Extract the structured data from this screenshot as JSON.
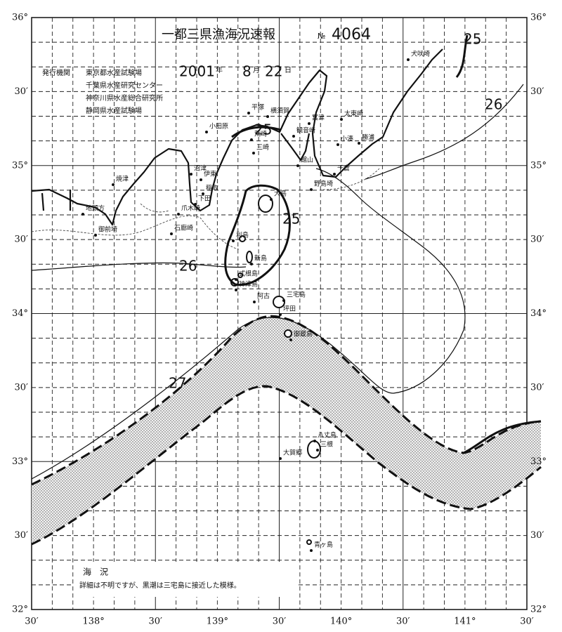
{
  "header": {
    "title": "一都三県漁海況速報",
    "number_label": "№",
    "number": "4064",
    "year": "2001",
    "year_unit": "年",
    "month": "8",
    "month_unit": "月",
    "day": "22",
    "day_unit": "日"
  },
  "issuers": {
    "label": "発行機関",
    "names": [
      "東京都水産試験場",
      "千葉県水産研究センター",
      "神奈川県水産総合研究所",
      "静岡県水産試験場"
    ]
  },
  "axes": {
    "lat_left": [
      "36°",
      "30′",
      "35°",
      "30′",
      "34°",
      "30′",
      "33°",
      "30′",
      "32°"
    ],
    "lat_right": [
      "36°",
      "30′",
      "35°",
      "30′",
      "34°",
      "30′",
      "33°",
      "30′",
      "32°"
    ],
    "lon_bottom": [
      "30′",
      "138°",
      "30′",
      "139°",
      "30′",
      "140°",
      "30′",
      "141°",
      "30′"
    ]
  },
  "places": [
    "犬吠埼",
    "太東崎",
    "勝浦",
    "小湊",
    "千倉",
    "野島埼",
    "館山",
    "富津",
    "観音崎",
    "横須賀",
    "平塚",
    "小田原",
    "荒崎",
    "三崎",
    "伊東",
    "沼津",
    "稲取",
    "下田",
    "爪木崎",
    "石廊崎",
    "焼津",
    "地頭方",
    "御前埼",
    "大島",
    "利島",
    "新島",
    "式根島",
    "神津島",
    "三宅島",
    "阿古",
    "坪田",
    "御蔵島",
    "八丈島",
    "三根",
    "大賀郷",
    "青ヶ島"
  ],
  "isotherms": [
    "25",
    "26",
    "25",
    "25",
    "26",
    "27"
  ],
  "notes": {
    "heading": "海　況",
    "text": "詳細は不明ですが、黒潮は三宅島に接近した模様。"
  }
}
